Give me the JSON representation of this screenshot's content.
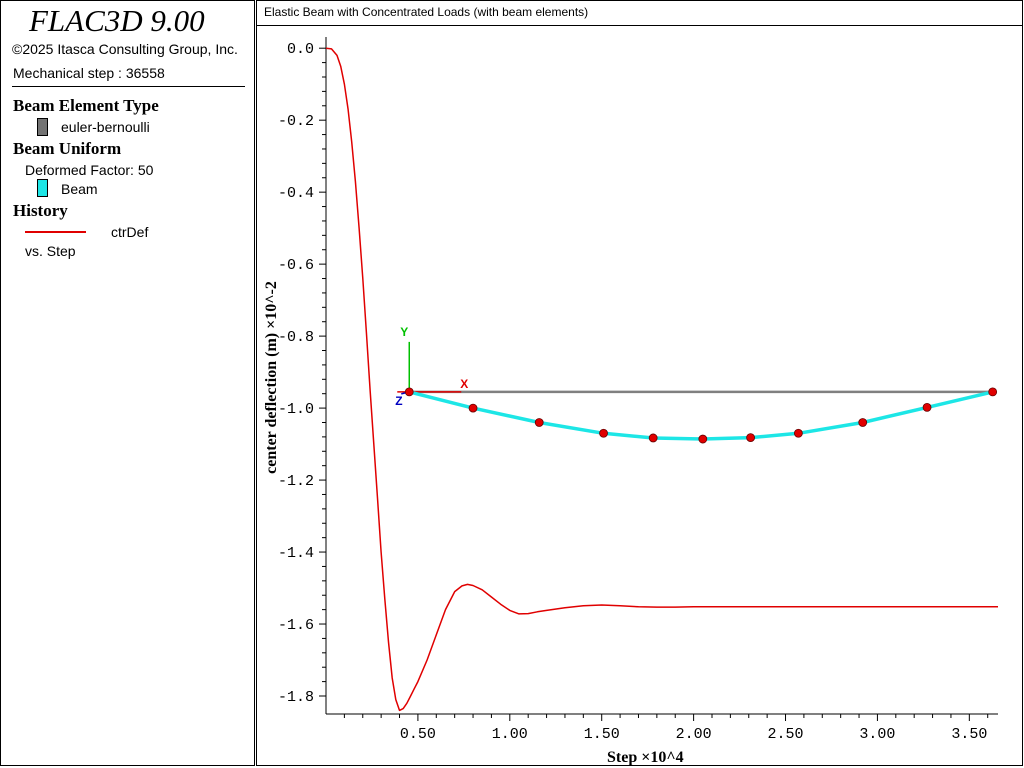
{
  "app": {
    "title": "FLAC3D 9.00",
    "copyright": "©2025 Itasca Consulting Group, Inc.",
    "step_text": "Mechanical step : 36558"
  },
  "legend": {
    "beam_type": {
      "heading": "Beam Element Type",
      "item_label": "euler-bernoulli",
      "item_color": "#737373"
    },
    "beam_uniform": {
      "heading": "Beam Uniform",
      "factor_text": "Deformed Factor: 50",
      "item_label": "Beam",
      "item_color": "#1de6e6"
    },
    "history": {
      "heading": "History",
      "item_label": "ctrDef",
      "item_color": "#e00000",
      "vs_text": "vs. Step"
    }
  },
  "chart_title": "Elastic Beam with Concentrated Loads (with beam elements)",
  "triad": {
    "x_label": "X",
    "y_label": "Y",
    "z_label": "Z",
    "x_color": "#e00000",
    "y_color": "#00c000",
    "z_color": "#0000c0"
  },
  "chart_data": {
    "type": "line",
    "title": "Elastic Beam with Concentrated Loads (with beam elements)",
    "xlabel": "Step",
    "xlabel_multiplier": "×10^4",
    "ylabel": "center deflection (m)",
    "ylabel_multiplier": "×10^-2",
    "xlim": [
      0,
      3.656
    ],
    "ylim": [
      -1.85,
      0.02
    ],
    "x_ticks": [
      "0.50",
      "1.00",
      "1.50",
      "2.00",
      "2.50",
      "3.00",
      "3.50"
    ],
    "y_ticks": [
      "0.0",
      "-0.2",
      "-0.4",
      "-0.6",
      "-0.8",
      "-1.0",
      "-1.2",
      "-1.4",
      "-1.6",
      "-1.8"
    ],
    "series": [
      {
        "name": "ctrDef",
        "color": "#e00000",
        "x": [
          0,
          0.03,
          0.06,
          0.08,
          0.1,
          0.12,
          0.14,
          0.16,
          0.18,
          0.2,
          0.22,
          0.24,
          0.26,
          0.28,
          0.3,
          0.32,
          0.34,
          0.36,
          0.38,
          0.4,
          0.42,
          0.44,
          0.46,
          0.48,
          0.5,
          0.55,
          0.6,
          0.65,
          0.7,
          0.74,
          0.77,
          0.8,
          0.85,
          0.9,
          0.95,
          1.0,
          1.05,
          1.1,
          1.15,
          1.2,
          1.3,
          1.4,
          1.5,
          1.6,
          1.7,
          1.8,
          1.9,
          2.0,
          2.2,
          2.5,
          3.0,
          3.5,
          3.656
        ],
        "y": [
          0,
          -0.002,
          -0.02,
          -0.05,
          -0.1,
          -0.17,
          -0.26,
          -0.37,
          -0.5,
          -0.64,
          -0.79,
          -0.95,
          -1.1,
          -1.25,
          -1.4,
          -1.53,
          -1.65,
          -1.75,
          -1.81,
          -1.84,
          -1.835,
          -1.82,
          -1.8,
          -1.78,
          -1.76,
          -1.7,
          -1.63,
          -1.56,
          -1.51,
          -1.494,
          -1.49,
          -1.493,
          -1.505,
          -1.525,
          -1.545,
          -1.562,
          -1.572,
          -1.571,
          -1.566,
          -1.562,
          -1.555,
          -1.549,
          -1.547,
          -1.549,
          -1.552,
          -1.553,
          -1.553,
          -1.552,
          -1.552,
          -1.552,
          -1.552,
          -1.552,
          -1.552
        ]
      }
    ],
    "beam": {
      "undeformed_color": "#808080",
      "deformed_color": "#1de6e6",
      "node_color": "#e00000",
      "nodes_x": [
        0.453,
        0.8,
        1.16,
        1.51,
        1.78,
        2.05,
        2.31,
        2.57,
        2.92,
        3.27,
        3.627
      ],
      "nodes_y": [
        -0.955,
        -1.0,
        -1.04,
        -1.07,
        -1.083,
        -1.086,
        -1.082,
        -1.07,
        -1.04,
        -0.998,
        -0.955
      ]
    }
  }
}
